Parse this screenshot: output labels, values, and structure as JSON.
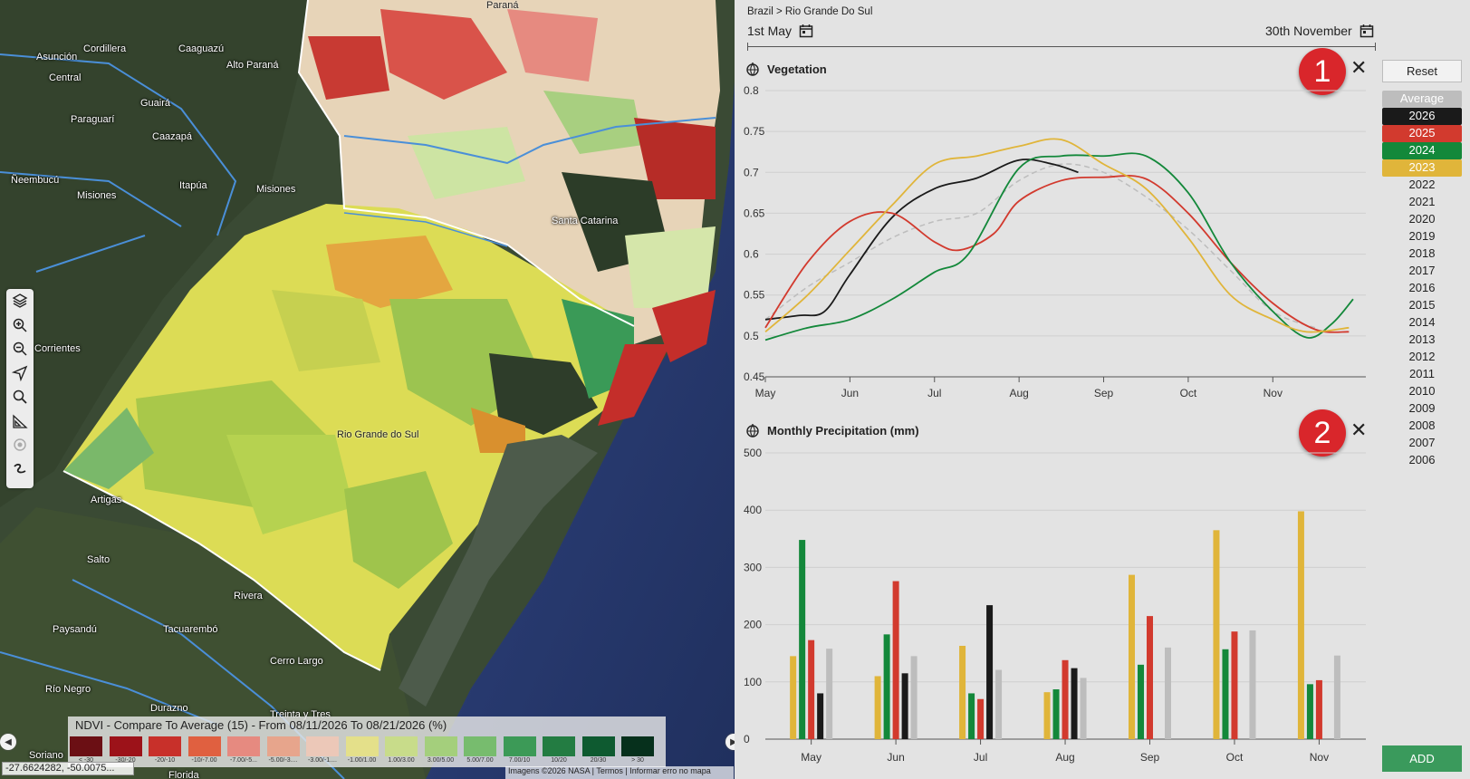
{
  "map": {
    "labels": [
      {
        "text": "Paraná",
        "dark": true
      },
      {
        "text": "Cordillera"
      },
      {
        "text": "Caaguazú"
      },
      {
        "text": "Asunción"
      },
      {
        "text": "Central"
      },
      {
        "text": "Alto Paraná"
      },
      {
        "text": "Guairá"
      },
      {
        "text": "Paraguarí"
      },
      {
        "text": "Caazapá"
      },
      {
        "text": "Ñeembucú"
      },
      {
        "text": "Itapúa"
      },
      {
        "text": "Misiones"
      },
      {
        "text": "Misiones"
      },
      {
        "text": "Santa Catarina"
      },
      {
        "text": "Corrientes"
      },
      {
        "text": "Rio Grande do Sul",
        "dark": true
      },
      {
        "text": "Artigas"
      },
      {
        "text": "Salto"
      },
      {
        "text": "Rivera"
      },
      {
        "text": "Paysandú"
      },
      {
        "text": "Tacuarembó"
      },
      {
        "text": "Cerro Largo"
      },
      {
        "text": "Río Negro"
      },
      {
        "text": "Durazno"
      },
      {
        "text": "Treinta y Tres"
      },
      {
        "text": "Soriano"
      },
      {
        "text": "Florida"
      }
    ],
    "legend": {
      "title": "NDVI - Compare To Average (15) - From 08/11/2026 To 08/21/2026 (%)",
      "items": [
        {
          "label": "< -30",
          "color": "#6b0f14"
        },
        {
          "label": "-30/-20",
          "color": "#9c1219"
        },
        {
          "label": "-20/-10",
          "color": "#c8302a"
        },
        {
          "label": "-10/-7.00",
          "color": "#e06040"
        },
        {
          "label": "-7.00/-5...",
          "color": "#e68a80"
        },
        {
          "label": "-5.00/-3....",
          "color": "#e7a58c"
        },
        {
          "label": "-3.00/-1....",
          "color": "#ecc8b8"
        },
        {
          "label": "-1.00/1.00",
          "color": "#e4e08a"
        },
        {
          "label": "1.00/3.00",
          "color": "#c8dc8a"
        },
        {
          "label": "3.00/5.00",
          "color": "#a4cf7c"
        },
        {
          "label": "5.00/7.00",
          "color": "#77bc6e"
        },
        {
          "label": "7.00/10",
          "color": "#3c9a57"
        },
        {
          "label": "10/20",
          "color": "#237c42"
        },
        {
          "label": "20/30",
          "color": "#0e5a30"
        },
        {
          "label": "> 30",
          "color": "#06301c"
        }
      ]
    },
    "coordinates": "-27.6624282, -50.0075...",
    "attribution": "Imagens ©2026 NASA | Termos | Informar erro no mapa",
    "tools": [
      "layers-icon",
      "zoom-in-icon",
      "zoom-out-icon",
      "locate-icon",
      "search-icon",
      "measure-icon",
      "target-icon",
      "draw-icon"
    ]
  },
  "panel": {
    "breadcrumb": "Brazil > Rio Grande Do Sul",
    "date_start": "1st May",
    "date_end": "30th November",
    "reset_label": "Reset",
    "add_label": "ADD",
    "years": [
      {
        "label": "Average",
        "selected": true,
        "color": "#bdbdbd"
      },
      {
        "label": "2026",
        "selected": true,
        "color": "#1a1a1a"
      },
      {
        "label": "2025",
        "selected": true,
        "color": "#d23a2e"
      },
      {
        "label": "2024",
        "selected": true,
        "color": "#13883a"
      },
      {
        "label": "2023",
        "selected": true,
        "color": "#e0b53a"
      },
      {
        "label": "2022"
      },
      {
        "label": "2021"
      },
      {
        "label": "2020"
      },
      {
        "label": "2019"
      },
      {
        "label": "2018"
      },
      {
        "label": "2017"
      },
      {
        "label": "2016"
      },
      {
        "label": "2015"
      },
      {
        "label": "2014"
      },
      {
        "label": "2013"
      },
      {
        "label": "2012"
      },
      {
        "label": "2011"
      },
      {
        "label": "2010"
      },
      {
        "label": "2009"
      },
      {
        "label": "2008"
      },
      {
        "label": "2007"
      },
      {
        "label": "2006"
      }
    ],
    "badges": [
      "1",
      "2"
    ]
  },
  "chart_data": [
    {
      "type": "line",
      "title": "Vegetation",
      "x_labels": [
        "May",
        "Jun",
        "Jul",
        "Aug",
        "Sep",
        "Oct",
        "Nov"
      ],
      "ylim": [
        0.45,
        0.8
      ],
      "yticks": [
        "0.8",
        "0.75",
        "0.7",
        "0.65",
        "0.6",
        "0.55",
        "0.5",
        "0.45"
      ],
      "grid": true,
      "series": [
        {
          "name": "Average",
          "color": "#bdbdbd",
          "dashed": true,
          "points": [
            [
              0,
              0.52
            ],
            [
              0.5,
              0.56
            ],
            [
              1,
              0.59
            ],
            [
              1.5,
              0.62
            ],
            [
              2,
              0.64
            ],
            [
              2.5,
              0.65
            ],
            [
              3,
              0.69
            ],
            [
              3.5,
              0.71
            ],
            [
              4,
              0.7
            ],
            [
              4.5,
              0.67
            ],
            [
              5,
              0.63
            ],
            [
              5.5,
              0.58
            ],
            [
              6,
              0.53
            ],
            [
              6.5,
              0.51
            ]
          ]
        },
        {
          "name": "2026",
          "color": "#1a1a1a",
          "points": [
            [
              0,
              0.52
            ],
            [
              0.4,
              0.525
            ],
            [
              0.7,
              0.53
            ],
            [
              1,
              0.575
            ],
            [
              1.5,
              0.645
            ],
            [
              2,
              0.68
            ],
            [
              2.5,
              0.693
            ],
            [
              3,
              0.715
            ],
            [
              3.4,
              0.71
            ],
            [
              3.7,
              0.7
            ]
          ]
        },
        {
          "name": "2025",
          "color": "#d23a2e",
          "points": [
            [
              0,
              0.51
            ],
            [
              0.5,
              0.59
            ],
            [
              1,
              0.64
            ],
            [
              1.5,
              0.65
            ],
            [
              2,
              0.615
            ],
            [
              2.3,
              0.605
            ],
            [
              2.7,
              0.625
            ],
            [
              3,
              0.665
            ],
            [
              3.5,
              0.69
            ],
            [
              4,
              0.694
            ],
            [
              4.5,
              0.692
            ],
            [
              5,
              0.65
            ],
            [
              5.5,
              0.59
            ],
            [
              6,
              0.54
            ],
            [
              6.5,
              0.508
            ],
            [
              6.9,
              0.505
            ]
          ]
        },
        {
          "name": "2024",
          "color": "#13883a",
          "points": [
            [
              0,
              0.495
            ],
            [
              0.5,
              0.51
            ],
            [
              1,
              0.52
            ],
            [
              1.5,
              0.545
            ],
            [
              2,
              0.578
            ],
            [
              2.4,
              0.6
            ],
            [
              3,
              0.705
            ],
            [
              3.5,
              0.72
            ],
            [
              4,
              0.72
            ],
            [
              4.5,
              0.72
            ],
            [
              5,
              0.675
            ],
            [
              5.5,
              0.59
            ],
            [
              6,
              0.53
            ],
            [
              6.4,
              0.498
            ],
            [
              6.7,
              0.515
            ],
            [
              6.95,
              0.545
            ]
          ]
        },
        {
          "name": "2023",
          "color": "#e0b53a",
          "points": [
            [
              0,
              0.505
            ],
            [
              0.5,
              0.55
            ],
            [
              1,
              0.605
            ],
            [
              1.5,
              0.66
            ],
            [
              2,
              0.71
            ],
            [
              2.5,
              0.72
            ],
            [
              3,
              0.732
            ],
            [
              3.5,
              0.74
            ],
            [
              4,
              0.71
            ],
            [
              4.5,
              0.68
            ],
            [
              5,
              0.62
            ],
            [
              5.5,
              0.55
            ],
            [
              6,
              0.52
            ],
            [
              6.4,
              0.505
            ],
            [
              6.9,
              0.51
            ]
          ]
        }
      ]
    },
    {
      "type": "bar",
      "title": "Monthly Precipitation (mm)",
      "categories": [
        "May",
        "Jun",
        "Jul",
        "Aug",
        "Sep",
        "Oct",
        "Nov"
      ],
      "ylim": [
        0,
        500
      ],
      "yticks": [
        "500",
        "400",
        "300",
        "200",
        "100",
        "0"
      ],
      "grid": true,
      "series": [
        {
          "name": "2023",
          "color": "#e0b53a",
          "values": [
            145,
            110,
            163,
            82,
            287,
            365,
            398
          ]
        },
        {
          "name": "2024",
          "color": "#13883a",
          "values": [
            348,
            183,
            80,
            87,
            130,
            157,
            96
          ]
        },
        {
          "name": "2025",
          "color": "#d23a2e",
          "values": [
            173,
            276,
            70,
            138,
            215,
            188,
            103
          ]
        },
        {
          "name": "2026",
          "color": "#1a1a1a",
          "values": [
            80,
            115,
            234,
            124,
            null,
            null,
            null
          ]
        },
        {
          "name": "Average",
          "color": "#bdbdbd",
          "values": [
            158,
            145,
            121,
            107,
            160,
            190,
            146
          ]
        }
      ]
    }
  ]
}
